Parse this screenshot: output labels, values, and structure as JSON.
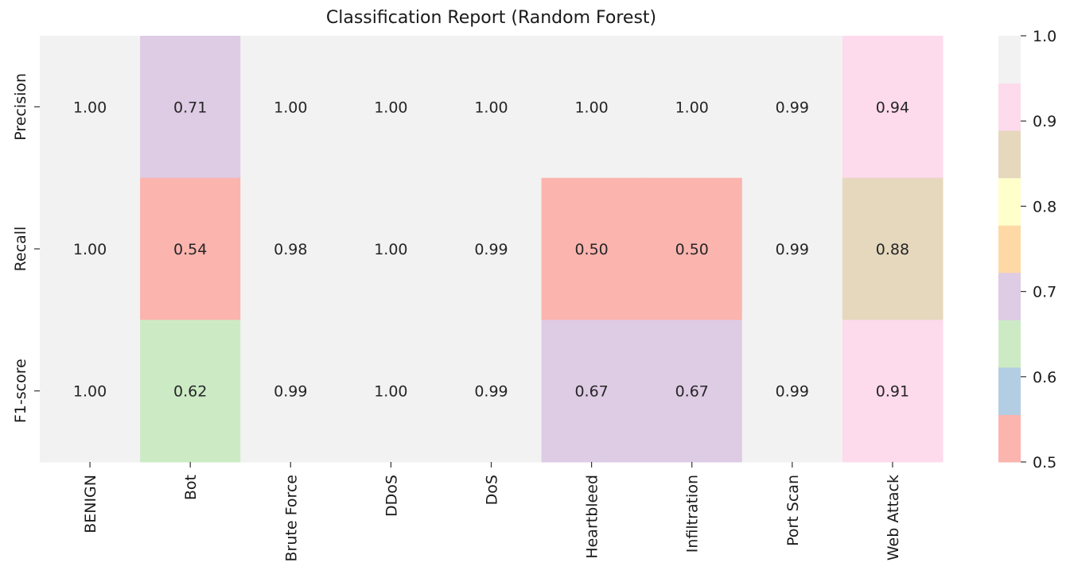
{
  "chart_data": {
    "type": "heatmap",
    "title": "Classification Report (Random Forest)",
    "xlabel": "",
    "ylabel": "",
    "columns": [
      "BENIGN",
      "Bot",
      "Brute Force",
      "DDoS",
      "DoS",
      "Heartbleed",
      "Infiltration",
      "Port Scan",
      "Web Attack"
    ],
    "rows": [
      "Precision",
      "Recall",
      "F1-score"
    ],
    "values": [
      [
        1.0,
        0.71,
        1.0,
        1.0,
        1.0,
        1.0,
        1.0,
        0.99,
        0.94
      ],
      [
        1.0,
        0.54,
        0.98,
        1.0,
        0.99,
        0.5,
        0.5,
        0.99,
        0.88
      ],
      [
        1.0,
        0.62,
        0.99,
        1.0,
        0.99,
        0.67,
        0.67,
        0.99,
        0.91
      ]
    ],
    "value_labels": [
      [
        "1.00",
        "0.71",
        "1.00",
        "1.00",
        "1.00",
        "1.00",
        "1.00",
        "0.99",
        "0.94"
      ],
      [
        "1.00",
        "0.54",
        "0.98",
        "1.00",
        "0.99",
        "0.50",
        "0.50",
        "0.99",
        "0.88"
      ],
      [
        "1.00",
        "0.62",
        "0.99",
        "1.00",
        "0.99",
        "0.67",
        "0.67",
        "0.99",
        "0.91"
      ]
    ],
    "colorbar": {
      "min": 0.5,
      "max": 1.0,
      "ticks": [
        "0.5",
        "0.6",
        "0.7",
        "0.8",
        "0.9",
        "1.0"
      ],
      "colormap": "Pastel1",
      "colors": [
        "#fbb4ae",
        "#b3cde3",
        "#ccebc5",
        "#decbe4",
        "#fed9a6",
        "#ffffcc",
        "#e5d8bd",
        "#fddaec",
        "#f2f2f2"
      ]
    }
  }
}
